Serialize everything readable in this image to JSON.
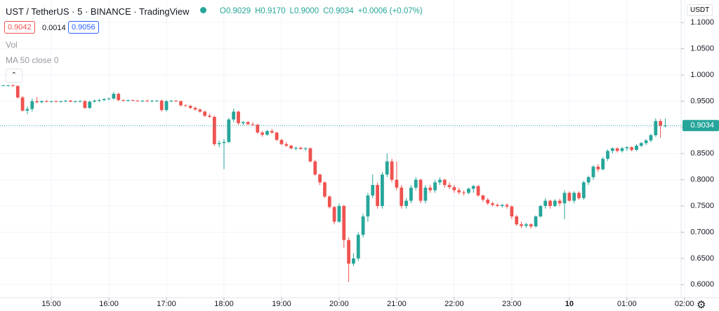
{
  "header": {
    "symbol": "UST / TetherUS · 5 · BINANCE · TradingView",
    "legend": [
      "O0.9029",
      "H0.9170",
      "L0.9000",
      "C0.9034",
      "+0.0006 (+0.07%)"
    ],
    "bid": "0.9042",
    "spread": "0.0014",
    "ask": "0.9056",
    "indicators": [
      "Vol",
      "MA 50 close 0"
    ],
    "currency": "USDT"
  },
  "chart_data": {
    "type": "candlestick",
    "up_color": "#26a69a",
    "down_color": "#ef5350",
    "grid": true,
    "current_price": 0.9034,
    "ylim": [
      0.575,
      1.143
    ],
    "yticks": [
      {
        "value": 0.6,
        "label": "0.6000"
      },
      {
        "value": 0.65,
        "label": "0.6500"
      },
      {
        "value": 0.7,
        "label": "0.7000"
      },
      {
        "value": 0.75,
        "label": "0.7500"
      },
      {
        "value": 0.8,
        "label": "0.8000"
      },
      {
        "value": 0.85,
        "label": "0.8500"
      },
      {
        "value": 0.9,
        "label": "0.9000"
      },
      {
        "value": 0.95,
        "label": "0.9500"
      },
      {
        "value": 1,
        "label": "1.0000"
      },
      {
        "value": 1.05,
        "label": "1.0500"
      },
      {
        "value": 1.1,
        "label": "1.1000"
      }
    ],
    "xlim": [
      0.3,
      142.3
    ],
    "xticks": [
      {
        "value": 11,
        "label": "15:00"
      },
      {
        "value": 23,
        "label": "16:00"
      },
      {
        "value": 35,
        "label": "17:00"
      },
      {
        "value": 47,
        "label": "18:00"
      },
      {
        "value": 59,
        "label": "19:00"
      },
      {
        "value": 71,
        "label": "20:00"
      },
      {
        "value": 83,
        "label": "21:00"
      },
      {
        "value": 95,
        "label": "22:00"
      },
      {
        "value": 107,
        "label": "23:00"
      },
      {
        "value": 119,
        "label": "10"
      },
      {
        "value": 131,
        "label": "01:00"
      },
      {
        "value": 143,
        "label": "02:00"
      }
    ],
    "ohlc": [
      [
        0.98,
        0.981,
        0.979,
        0.98
      ],
      [
        0.98,
        0.981,
        0.979,
        0.98
      ],
      [
        0.98,
        0.981,
        0.979,
        0.98
      ],
      [
        0.98,
        0.982,
        0.978,
        0.979
      ],
      [
        0.979,
        0.98,
        0.955,
        0.957
      ],
      [
        0.957,
        0.96,
        0.93,
        0.932
      ],
      [
        0.932,
        0.94,
        0.925,
        0.935
      ],
      [
        0.935,
        0.955,
        0.93,
        0.95
      ],
      [
        0.95,
        0.958,
        0.946,
        0.948
      ],
      [
        0.948,
        0.951,
        0.946,
        0.95
      ],
      [
        0.95,
        0.952,
        0.948,
        0.949
      ],
      [
        0.949,
        0.951,
        0.947,
        0.95
      ],
      [
        0.95,
        0.951,
        0.948,
        0.949
      ],
      [
        0.949,
        0.951,
        0.947,
        0.95
      ],
      [
        0.95,
        0.952,
        0.948,
        0.951
      ],
      [
        0.951,
        0.952,
        0.948,
        0.949
      ],
      [
        0.949,
        0.951,
        0.947,
        0.95
      ],
      [
        0.95,
        0.952,
        0.948,
        0.95
      ],
      [
        0.95,
        0.952,
        0.935,
        0.937
      ],
      [
        0.937,
        0.951,
        0.935,
        0.949
      ],
      [
        0.949,
        0.953,
        0.947,
        0.951
      ],
      [
        0.951,
        0.954,
        0.948,
        0.952
      ],
      [
        0.952,
        0.955,
        0.95,
        0.954
      ],
      [
        0.954,
        0.957,
        0.952,
        0.955
      ],
      [
        0.955,
        0.968,
        0.953,
        0.964
      ],
      [
        0.964,
        0.966,
        0.95,
        0.952
      ],
      [
        0.952,
        0.953,
        0.949,
        0.951
      ],
      [
        0.951,
        0.953,
        0.949,
        0.952
      ],
      [
        0.952,
        0.953,
        0.95,
        0.951
      ],
      [
        0.951,
        0.952,
        0.949,
        0.95
      ],
      [
        0.95,
        0.952,
        0.948,
        0.951
      ],
      [
        0.951,
        0.953,
        0.949,
        0.95
      ],
      [
        0.95,
        0.952,
        0.948,
        0.951
      ],
      [
        0.951,
        0.952,
        0.949,
        0.951
      ],
      [
        0.951,
        0.953,
        0.93,
        0.933
      ],
      [
        0.933,
        0.952,
        0.93,
        0.95
      ],
      [
        0.95,
        0.952,
        0.948,
        0.951
      ],
      [
        0.951,
        0.952,
        0.949,
        0.95
      ],
      [
        0.95,
        0.951,
        0.94,
        0.942
      ],
      [
        0.942,
        0.944,
        0.94,
        0.941
      ],
      [
        0.941,
        0.943,
        0.935,
        0.937
      ],
      [
        0.937,
        0.94,
        0.932,
        0.934
      ],
      [
        0.934,
        0.936,
        0.928,
        0.93
      ],
      [
        0.93,
        0.932,
        0.92,
        0.922
      ],
      [
        0.922,
        0.926,
        0.918,
        0.92
      ],
      [
        0.92,
        0.922,
        0.865,
        0.868
      ],
      [
        0.868,
        0.875,
        0.862,
        0.87
      ],
      [
        0.87,
        0.878,
        0.82,
        0.872
      ],
      [
        0.872,
        0.918,
        0.87,
        0.915
      ],
      [
        0.915,
        0.936,
        0.91,
        0.93
      ],
      [
        0.93,
        0.932,
        0.905,
        0.908
      ],
      [
        0.908,
        0.912,
        0.904,
        0.91
      ],
      [
        0.91,
        0.912,
        0.905,
        0.906
      ],
      [
        0.906,
        0.91,
        0.902,
        0.905
      ],
      [
        0.905,
        0.907,
        0.888,
        0.89
      ],
      [
        0.89,
        0.893,
        0.882,
        0.886
      ],
      [
        0.886,
        0.895,
        0.884,
        0.893
      ],
      [
        0.893,
        0.897,
        0.888,
        0.89
      ],
      [
        0.89,
        0.892,
        0.874,
        0.876
      ],
      [
        0.876,
        0.878,
        0.866,
        0.868
      ],
      [
        0.868,
        0.872,
        0.862,
        0.865
      ],
      [
        0.865,
        0.867,
        0.858,
        0.86
      ],
      [
        0.86,
        0.863,
        0.856,
        0.861
      ],
      [
        0.861,
        0.863,
        0.857,
        0.859
      ],
      [
        0.859,
        0.862,
        0.855,
        0.86
      ],
      [
        0.86,
        0.862,
        0.833,
        0.835
      ],
      [
        0.835,
        0.838,
        0.808,
        0.81
      ],
      [
        0.81,
        0.812,
        0.79,
        0.795
      ],
      [
        0.795,
        0.797,
        0.765,
        0.768
      ],
      [
        0.768,
        0.77,
        0.745,
        0.748
      ],
      [
        0.748,
        0.75,
        0.715,
        0.72
      ],
      [
        0.72,
        0.755,
        0.718,
        0.75
      ],
      [
        0.75,
        0.752,
        0.67,
        0.685
      ],
      [
        0.685,
        0.69,
        0.605,
        0.64
      ],
      [
        0.64,
        0.66,
        0.635,
        0.65
      ],
      [
        0.65,
        0.7,
        0.645,
        0.695
      ],
      [
        0.695,
        0.735,
        0.69,
        0.73
      ],
      [
        0.73,
        0.775,
        0.72,
        0.77
      ],
      [
        0.77,
        0.81,
        0.765,
        0.79
      ],
      [
        0.79,
        0.795,
        0.745,
        0.75
      ],
      [
        0.75,
        0.815,
        0.745,
        0.81
      ],
      [
        0.81,
        0.85,
        0.805,
        0.835
      ],
      [
        0.835,
        0.84,
        0.795,
        0.8
      ],
      [
        0.8,
        0.835,
        0.78,
        0.785
      ],
      [
        0.785,
        0.79,
        0.745,
        0.75
      ],
      [
        0.75,
        0.765,
        0.745,
        0.76
      ],
      [
        0.76,
        0.79,
        0.755,
        0.785
      ],
      [
        0.785,
        0.805,
        0.78,
        0.8
      ],
      [
        0.8,
        0.802,
        0.755,
        0.76
      ],
      [
        0.76,
        0.79,
        0.755,
        0.785
      ],
      [
        0.785,
        0.79,
        0.775,
        0.78
      ],
      [
        0.78,
        0.8,
        0.775,
        0.795
      ],
      [
        0.795,
        0.805,
        0.79,
        0.8
      ],
      [
        0.8,
        0.802,
        0.785,
        0.79
      ],
      [
        0.79,
        0.795,
        0.782,
        0.786
      ],
      [
        0.786,
        0.79,
        0.775,
        0.78
      ],
      [
        0.78,
        0.785,
        0.772,
        0.776
      ],
      [
        0.776,
        0.78,
        0.77,
        0.775
      ],
      [
        0.775,
        0.785,
        0.772,
        0.783
      ],
      [
        0.783,
        0.79,
        0.775,
        0.788
      ],
      [
        0.788,
        0.79,
        0.768,
        0.77
      ],
      [
        0.77,
        0.772,
        0.758,
        0.762
      ],
      [
        0.762,
        0.765,
        0.752,
        0.755
      ],
      [
        0.755,
        0.758,
        0.749,
        0.752
      ],
      [
        0.752,
        0.755,
        0.748,
        0.75
      ],
      [
        0.75,
        0.754,
        0.747,
        0.752
      ],
      [
        0.752,
        0.755,
        0.745,
        0.749
      ],
      [
        0.749,
        0.752,
        0.725,
        0.73
      ],
      [
        0.73,
        0.733,
        0.712,
        0.715
      ],
      [
        0.715,
        0.72,
        0.708,
        0.712
      ],
      [
        0.712,
        0.718,
        0.708,
        0.715
      ],
      [
        0.715,
        0.717,
        0.707,
        0.711
      ],
      [
        0.711,
        0.732,
        0.709,
        0.73
      ],
      [
        0.73,
        0.752,
        0.728,
        0.75
      ],
      [
        0.75,
        0.765,
        0.745,
        0.76
      ],
      [
        0.76,
        0.762,
        0.745,
        0.75
      ],
      [
        0.75,
        0.763,
        0.748,
        0.76
      ],
      [
        0.76,
        0.764,
        0.75,
        0.755
      ],
      [
        0.755,
        0.78,
        0.725,
        0.775
      ],
      [
        0.775,
        0.778,
        0.758,
        0.76
      ],
      [
        0.76,
        0.778,
        0.755,
        0.775
      ],
      [
        0.775,
        0.778,
        0.762,
        0.765
      ],
      [
        0.765,
        0.798,
        0.762,
        0.795
      ],
      [
        0.795,
        0.808,
        0.79,
        0.805
      ],
      [
        0.805,
        0.828,
        0.8,
        0.825
      ],
      [
        0.825,
        0.83,
        0.815,
        0.82
      ],
      [
        0.82,
        0.843,
        0.818,
        0.84
      ],
      [
        0.84,
        0.858,
        0.836,
        0.855
      ],
      [
        0.855,
        0.862,
        0.85,
        0.86
      ],
      [
        0.86,
        0.862,
        0.852,
        0.855
      ],
      [
        0.855,
        0.863,
        0.852,
        0.86
      ],
      [
        0.86,
        0.864,
        0.855,
        0.862
      ],
      [
        0.862,
        0.864,
        0.854,
        0.857
      ],
      [
        0.857,
        0.868,
        0.855,
        0.865
      ],
      [
        0.865,
        0.872,
        0.862,
        0.87
      ],
      [
        0.87,
        0.878,
        0.866,
        0.875
      ],
      [
        0.875,
        0.888,
        0.872,
        0.885
      ],
      [
        0.885,
        0.917,
        0.882,
        0.912
      ],
      [
        0.912,
        0.916,
        0.88,
        0.9029
      ],
      [
        0.9029,
        0.917,
        0.9,
        0.9034
      ]
    ]
  }
}
